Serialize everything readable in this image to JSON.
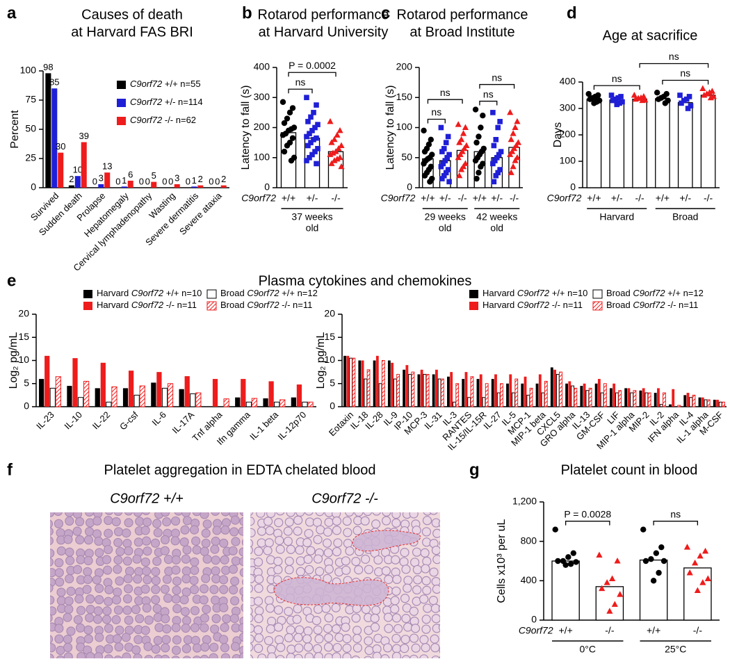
{
  "chart_data": [
    {
      "type": "bar",
      "letter": "a",
      "title": [
        "Causes of death",
        "at Harvard FAS BRI"
      ],
      "ylabel": "Percent",
      "categories": [
        "Survived",
        "Sudden death",
        "Prolapse",
        "Hepatomegaly",
        "Cervical lymphadenopathy",
        "Wasting",
        "Severe dermatitis",
        "Severe ataxia"
      ],
      "series": [
        {
          "name": "C9orf72 +/+ n=55",
          "color": "#000000",
          "values": [
            98,
            2,
            0,
            0,
            0,
            0,
            0,
            0
          ]
        },
        {
          "name": "C9orf72 +/- n=114",
          "color": "#1f1fd6",
          "values": [
            85,
            10,
            3,
            1,
            0,
            0,
            1,
            0
          ]
        },
        {
          "name": "C9orf72 -/- n=62",
          "color": "#ee1c1c",
          "values": [
            30,
            39,
            13,
            6,
            5,
            3,
            2,
            2
          ]
        }
      ],
      "ylim": [
        0,
        100
      ],
      "yticks": [
        0,
        25,
        50,
        75,
        100
      ],
      "legend": "upper right",
      "data_labels": true
    },
    {
      "type": "dotbar",
      "letter": "b",
      "title": [
        "Rotarod performance",
        "at Harvard University"
      ],
      "ylabel": "Latency to fall (s)",
      "row_label": "C9orf72",
      "ylim": [
        0,
        400
      ],
      "yticks": [
        0,
        100,
        200,
        300,
        400
      ],
      "groups": [
        {
          "label": [
            "37 weeks",
            "old"
          ],
          "categories": [
            "+/+",
            "+/-",
            "-/-"
          ],
          "colors": [
            "#000000",
            "#1f1fd6",
            "#ee1c1c"
          ],
          "markers": [
            "circle",
            "square",
            "triangle"
          ],
          "values": [
            183,
            165,
            120
          ],
          "points": [
            [
              285,
              265,
              250,
              230,
              215,
              200,
              195,
              190,
              180,
              175,
              165,
              150,
              140,
              120,
              100,
              90
            ],
            [
              300,
              275,
              250,
              235,
              220,
              210,
              200,
              190,
              180,
              170,
              165,
              160,
              150,
              140,
              130,
              120,
              110,
              100,
              90,
              80
            ],
            [
              220,
              190,
              175,
              160,
              150,
              140,
              130,
              120,
              115,
              110,
              100,
              95,
              90,
              80,
              70
            ]
          ]
        }
      ],
      "annotations": [
        {
          "text": "ns",
          "between": [
            0,
            1
          ]
        },
        {
          "text": "P = 0.0002",
          "between": [
            0,
            2
          ]
        }
      ]
    },
    {
      "type": "dotbar",
      "letter": "c",
      "title": [
        "Rotarod performance",
        "at Broad Institute"
      ],
      "ylabel": "Latency to fall (s)",
      "row_label": "C9orf72",
      "ylim": [
        0,
        200
      ],
      "yticks": [
        0,
        50,
        100,
        150,
        200
      ],
      "groups": [
        {
          "label": [
            "29 weeks",
            "old"
          ],
          "categories": [
            "+/+",
            "+/-",
            "-/-"
          ],
          "colors": [
            "#000000",
            "#1f1fd6",
            "#ee1c1c"
          ],
          "markers": [
            "circle",
            "square",
            "triangle"
          ],
          "values": [
            48,
            45,
            62
          ],
          "points": [
            [
              95,
              80,
              72,
              65,
              60,
              55,
              50,
              48,
              45,
              40,
              35,
              30,
              25,
              20,
              15,
              10
            ],
            [
              100,
              85,
              75,
              65,
              60,
              55,
              50,
              45,
              40,
              35,
              30,
              25,
              20,
              15,
              10
            ],
            [
              105,
              100,
              90,
              80,
              75,
              70,
              65,
              60,
              55,
              50,
              40,
              35,
              30,
              20
            ]
          ]
        },
        {
          "label": [
            "42 weeks",
            "old"
          ],
          "categories": [
            "+/+",
            "+/-",
            "-/-"
          ],
          "colors": [
            "#000000",
            "#1f1fd6",
            "#ee1c1c"
          ],
          "markers": [
            "circle",
            "square",
            "triangle"
          ],
          "values": [
            60,
            50,
            67
          ],
          "points": [
            [
              130,
              120,
              100,
              85,
              75,
              65,
              60,
              55,
              50,
              45,
              40,
              35,
              25,
              15
            ],
            [
              125,
              110,
              100,
              80,
              70,
              60,
              55,
              50,
              45,
              40,
              30,
              25,
              20,
              10
            ],
            [
              125,
              110,
              100,
              90,
              80,
              75,
              70,
              65,
              60,
              55,
              50,
              45,
              35,
              25
            ]
          ]
        }
      ],
      "annotations": [
        {
          "text": "ns",
          "between": [
            0,
            1
          ]
        },
        {
          "text": "ns",
          "between": [
            0,
            2
          ]
        },
        {
          "text": "ns",
          "between": [
            3,
            4
          ]
        },
        {
          "text": "ns",
          "between": [
            3,
            5
          ]
        }
      ]
    },
    {
      "type": "dotbar",
      "letter": "d",
      "title": [
        "Age at sacrifice"
      ],
      "ylabel": "Days",
      "row_label": "C9orf72",
      "ylim": [
        0,
        400
      ],
      "yticks": [
        0,
        100,
        200,
        300,
        400
      ],
      "groups": [
        {
          "label": [
            "Harvard"
          ],
          "categories": [
            "+/+",
            "+/-",
            "-/-"
          ],
          "colors": [
            "#000000",
            "#1f1fd6",
            "#ee1c1c"
          ],
          "markers": [
            "circle",
            "square",
            "triangle"
          ],
          "values": [
            335,
            332,
            335
          ],
          "points": [
            [
              355,
              350,
              345,
              340,
              335,
              330,
              325,
              320
            ],
            [
              350,
              345,
              340,
              335,
              330,
              325,
              320,
              315
            ],
            [
              350,
              345,
              340,
              338,
              335,
              332,
              330
            ]
          ]
        },
        {
          "label": [
            "Broad"
          ],
          "categories": [
            "+/+",
            "+/-",
            "-/-"
          ],
          "colors": [
            "#000000",
            "#1f1fd6",
            "#ee1c1c"
          ],
          "markers": [
            "circle",
            "square",
            "triangle"
          ],
          "values": [
            337,
            322,
            350
          ],
          "points": [
            [
              360,
              355,
              345,
              340,
              335,
              330,
              320
            ],
            [
              350,
              345,
              335,
              330,
              320,
              310,
              300
            ],
            [
              375,
              365,
              360,
              355,
              350,
              345,
              340
            ]
          ]
        }
      ],
      "annotations": [
        {
          "text": "ns",
          "between": [
            0,
            2
          ]
        },
        {
          "text": "ns",
          "between": [
            3,
            5
          ]
        },
        {
          "text": "ns",
          "between": [
            2,
            5
          ]
        }
      ]
    },
    {
      "type": "bar",
      "letter": "e",
      "title": [
        "Plasma cytokines and chemokines"
      ],
      "ylabel": "Log₂ pg/mL",
      "categories": [
        "IL-23",
        "IL-10",
        "IL-22",
        "G-csf",
        "IL-6",
        "IL-17A",
        "Tnf alpha",
        "Ifn gamma",
        "IL-1 beta",
        "IL-12p70"
      ],
      "series": [
        {
          "name": "Harvard C9orf72 +/+ n=10",
          "color": "#000000",
          "style": "solid",
          "values": [
            6,
            4.5,
            4,
            4,
            5.2,
            3.8,
            0,
            2,
            1.8,
            2
          ]
        },
        {
          "name": "Harvard C9orf72 -/- n=11",
          "color": "#ee1c1c",
          "style": "solid",
          "values": [
            11,
            10.5,
            9.5,
            7.8,
            7.5,
            6.6,
            6,
            6,
            5.5,
            4.8
          ]
        },
        {
          "name": "Broad C9orf72 +/+ n=12",
          "color": "#000000",
          "style": "outline",
          "values": [
            4,
            2,
            1,
            2.5,
            4,
            2.8,
            0,
            1,
            1,
            1
          ]
        },
        {
          "name": "Broad C9orf72 -/- n=11",
          "color": "#ee1c1c",
          "style": "hatch",
          "values": [
            6.5,
            5.5,
            4.3,
            4.5,
            5,
            3,
            1.7,
            1.8,
            1.5,
            1
          ]
        }
      ],
      "ylim": [
        0,
        20
      ],
      "yticks": [
        0,
        5,
        10,
        15,
        20
      ],
      "legend": "top"
    },
    {
      "type": "bar",
      "ylabel": "Log₂ pg/mL",
      "categories": [
        "Eotaxin",
        "IL-18",
        "IL-28",
        "IL-9",
        "IP-10",
        "MCP-3",
        "IL-31",
        "IL-3",
        "RANTES",
        "IL-15/IL-15R",
        "IL-27",
        "IL-5",
        "MCP-1",
        "MIP-1 beta",
        "CXCL5",
        "GRO alpha",
        "IL-13",
        "GM-CSF",
        "LIF",
        "MIP-1 alpha",
        "MIP-2",
        "IL-2",
        "IFN alpha",
        "IL-4",
        "IL-1 alpha",
        "M-CSF"
      ],
      "series": [
        {
          "name": "Harvard C9orf72 +/+ n=10",
          "color": "#000000",
          "style": "solid",
          "values": [
            11,
            10,
            10,
            10,
            8,
            7,
            7,
            6.5,
            6,
            6,
            6,
            5,
            5,
            5,
            8.5,
            5,
            4.5,
            5,
            4,
            4,
            3.5,
            3,
            0.5,
            2.5,
            2,
            1.5
          ]
        },
        {
          "name": "Harvard C9orf72 -/- n=11",
          "color": "#ee1c1c",
          "style": "solid",
          "values": [
            11,
            10,
            11,
            9.5,
            9,
            8,
            8,
            7.5,
            7.5,
            7,
            7,
            7,
            6.5,
            7,
            8,
            5.5,
            5,
            6,
            5,
            4,
            4,
            4,
            3.8,
            3,
            2,
            1.5
          ]
        },
        {
          "name": "Broad C9orf72 +/+ n=12",
          "color": "#000000",
          "style": "outline",
          "values": [
            10.5,
            6,
            5,
            6,
            7,
            7,
            6,
            1,
            2,
            2,
            3,
            3,
            2.5,
            3,
            7,
            4.5,
            3.5,
            3,
            3,
            3,
            3,
            0.5,
            0,
            2,
            1.5,
            1
          ]
        },
        {
          "name": "Broad C9orf72 -/- n=11",
          "color": "#ee1c1c",
          "style": "hatch",
          "values": [
            10.5,
            8,
            10,
            7,
            7.5,
            7,
            6,
            5,
            6.5,
            5,
            5,
            6,
            4,
            5.5,
            7.5,
            4,
            4,
            5,
            3.5,
            3.5,
            3,
            3,
            0.3,
            2.5,
            1.5,
            1
          ]
        }
      ],
      "ylim": [
        0,
        20
      ],
      "yticks": [
        0,
        5,
        10,
        15,
        20
      ],
      "legend": "top"
    },
    {
      "type": "dotbar",
      "letter": "g",
      "title": [
        "Platelet count in blood"
      ],
      "ylabel": "Cells x10³ per uL",
      "row_label": "C9orf72",
      "ylim": [
        0,
        1200
      ],
      "yticks": [
        0,
        400,
        800,
        {
          "value": 1200,
          "label": "1,200"
        }
      ],
      "groups": [
        {
          "label": [
            "0°C"
          ],
          "categories": [
            "+/+",
            "-/-"
          ],
          "colors": [
            "#000000",
            "#ee1c1c"
          ],
          "markers": [
            "circle",
            "triangle"
          ],
          "values": [
            600,
            340
          ],
          "points": [
            [
              920,
              680,
              640,
              600,
              600,
              590,
              570,
              560
            ],
            [
              660,
              600,
              420,
              380,
              320,
              260,
              160,
              90
            ]
          ]
        },
        {
          "label": [
            "25°C"
          ],
          "categories": [
            "+/+",
            "-/-"
          ],
          "colors": [
            "#000000",
            "#ee1c1c"
          ],
          "markers": [
            "circle",
            "triangle"
          ],
          "values": [
            610,
            530
          ],
          "points": [
            [
              920,
              740,
              680,
              620,
              600,
              600,
              480,
              400
            ],
            [
              740,
              700,
              650,
              580,
              480,
              420,
              380,
              300
            ]
          ]
        }
      ],
      "annotations": [
        {
          "text": "P = 0.0028",
          "between": [
            0,
            1
          ]
        },
        {
          "text": "ns",
          "between": [
            2,
            3
          ]
        }
      ]
    }
  ],
  "image_panel": {
    "letter": "f",
    "title": "Platelet aggregation in EDTA chelated blood",
    "images": [
      {
        "label": "C9orf72 +/+"
      },
      {
        "label": "C9orf72 -/-"
      }
    ]
  }
}
